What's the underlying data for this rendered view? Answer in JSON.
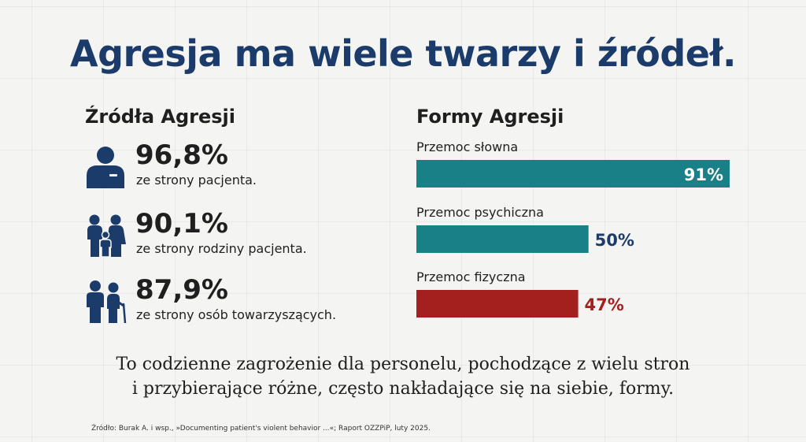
{
  "title": "Agresja ma wiele twarzy i źródeł.",
  "sources": {
    "title": "Źródła Agresji",
    "items": [
      {
        "value": "96,8%",
        "label": "ze strony pacjenta.",
        "icon": "patient-icon"
      },
      {
        "value": "90,1%",
        "label": "ze strony rodziny pacjenta.",
        "icon": "family-icon"
      },
      {
        "value": "87,9%",
        "label": "ze strony osób towarzyszących.",
        "icon": "companions-icon"
      }
    ]
  },
  "forms": {
    "title": "Formy Agresji"
  },
  "chart_data": {
    "type": "bar",
    "orientation": "horizontal",
    "title": "Formy Agresji",
    "categories": [
      "Przemoc słowna",
      "Przemoc psychiczna",
      "Przemoc fizyczna"
    ],
    "values": [
      91,
      50,
      47
    ],
    "value_labels": [
      "91%",
      "50%",
      "47%"
    ],
    "colors": [
      "#1a8088",
      "#1a8088",
      "#a3201f"
    ],
    "label_colors": [
      "#ffffff",
      "#1b3c6b",
      "#a3201f"
    ],
    "xlim": [
      0,
      91
    ],
    "grid": false
  },
  "conclusion": {
    "line1": "To codzienne zagrożenie dla personelu, pochodzące z wielu stron",
    "line2": "i przybierające różne, często nakładające się na siebie, formy."
  },
  "footnote": "Źródło: Burak A. i wsp., »Documenting patient's violent behavior ...«; Raport OZZPiP, luty 2025.",
  "colors": {
    "navy": "#1b3c6b",
    "teal": "#1a8088",
    "red": "#a3201f",
    "background": "#f4f4f2"
  }
}
